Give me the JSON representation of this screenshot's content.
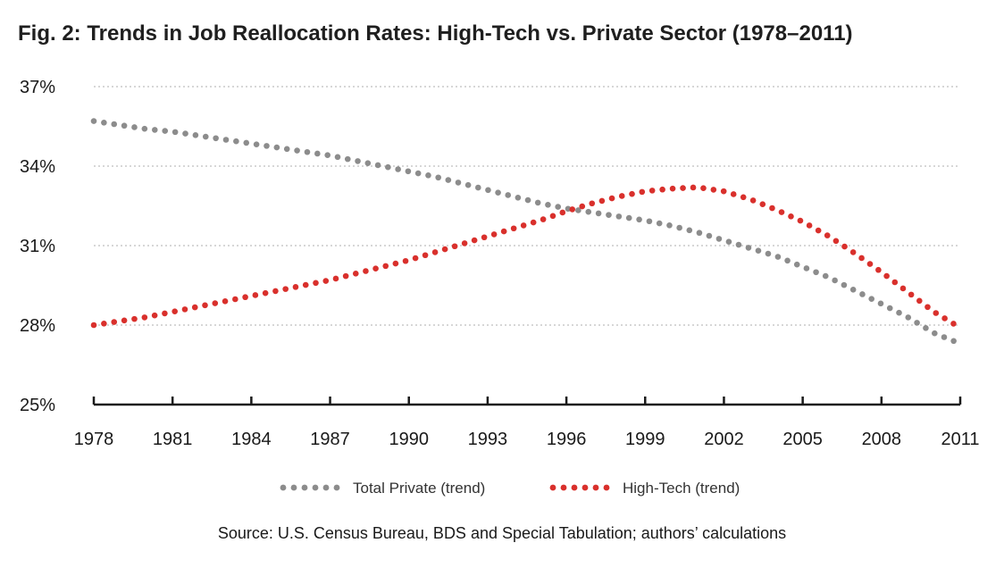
{
  "chart_data": {
    "type": "line",
    "title": "Fig. 2: Trends in Job Reallocation Rates: High-Tech vs. Private Sector (1978–2011)",
    "xlabel": "",
    "ylabel": "",
    "x_ticks": [
      "1978",
      "1981",
      "1984",
      "1987",
      "1990",
      "1993",
      "1996",
      "1999",
      "2002",
      "2005",
      "2008",
      "2011"
    ],
    "y_ticks": [
      "25%",
      "28%",
      "31%",
      "34%",
      "37%"
    ],
    "xlim": [
      1978,
      2011
    ],
    "ylim": [
      25,
      37
    ],
    "grid": true,
    "legend_position": "bottom",
    "series": [
      {
        "name": "Total Private (trend)",
        "color": "#8c8c8c",
        "x": [
          1978,
          1979,
          1980,
          1981,
          1982,
          1983,
          1984,
          1985,
          1986,
          1987,
          1988,
          1989,
          1990,
          1991,
          1992,
          1993,
          1994,
          1995,
          1996,
          1997,
          1998,
          1999,
          2000,
          2001,
          2002,
          2003,
          2004,
          2005,
          2006,
          2007,
          2008,
          2009,
          2010,
          2011
        ],
        "values": [
          35.7,
          35.55,
          35.4,
          35.3,
          35.15,
          35.0,
          34.85,
          34.7,
          34.55,
          34.4,
          34.2,
          34.0,
          33.8,
          33.6,
          33.35,
          33.1,
          32.85,
          32.6,
          32.4,
          32.25,
          32.1,
          31.95,
          31.75,
          31.5,
          31.2,
          30.9,
          30.6,
          30.2,
          29.8,
          29.3,
          28.8,
          28.3,
          27.7,
          27.3
        ]
      },
      {
        "name": "High-Tech (trend)",
        "color": "#d9302c",
        "x": [
          1978,
          1979,
          1980,
          1981,
          1982,
          1983,
          1984,
          1985,
          1986,
          1987,
          1988,
          1989,
          1990,
          1991,
          1992,
          1993,
          1994,
          1995,
          1996,
          1997,
          1998,
          1999,
          2000,
          2001,
          2002,
          2003,
          2004,
          2005,
          2006,
          2007,
          2008,
          2009,
          2010,
          2011
        ],
        "values": [
          28.0,
          28.15,
          28.3,
          28.5,
          28.7,
          28.9,
          29.1,
          29.3,
          29.5,
          29.7,
          29.95,
          30.2,
          30.45,
          30.75,
          31.05,
          31.35,
          31.65,
          31.95,
          32.3,
          32.6,
          32.85,
          33.05,
          33.15,
          33.2,
          33.05,
          32.75,
          32.35,
          31.9,
          31.35,
          30.7,
          30.0,
          29.25,
          28.5,
          27.9
        ]
      }
    ]
  },
  "source": "Source: U.S. Census Bureau, BDS and Special Tabulation; authors’ calculations"
}
